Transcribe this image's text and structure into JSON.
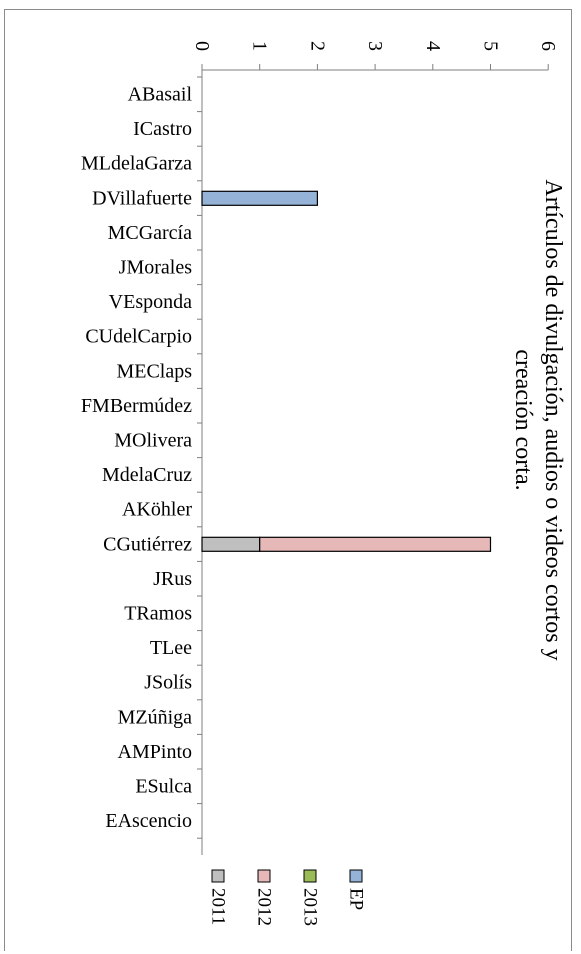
{
  "chart_data": {
    "type": "bar",
    "orientation": "horizontal",
    "stacked": true,
    "title": "Artículos de divulgación, audios o videos cortos y creación corta.",
    "title_lines": [
      "Artículos de divulgación, audios o videos cortos y",
      "creación corta."
    ],
    "categories": [
      "ABasail",
      "ICastro",
      "MLdelaGarza",
      "DVillafuerte",
      "MCGarcía",
      "JMorales",
      "VEsponda",
      "CUdelCarpio",
      "MEClaps",
      "FMBermúdez",
      "MOlivera",
      "MdelaCruz",
      "AKöhler",
      "CGutiérrez",
      "JRus",
      "TRamos",
      "TLee",
      "JSolís",
      "MZúñiga",
      "AMPinto",
      "ESulca",
      "EAscencio"
    ],
    "series": [
      {
        "name": "2011",
        "color": "#bfbfbf",
        "values": [
          0,
          0,
          0,
          0,
          0,
          0,
          0,
          0,
          0,
          0,
          0,
          0,
          0,
          1,
          0,
          0,
          0,
          0,
          0,
          0,
          0,
          0
        ]
      },
      {
        "name": "2012",
        "color": "#e6b9b8",
        "values": [
          0,
          0,
          0,
          0,
          0,
          0,
          0,
          0,
          0,
          0,
          0,
          0,
          0,
          4,
          0,
          0,
          0,
          0,
          0,
          0,
          0,
          0
        ]
      },
      {
        "name": "2013",
        "color": "#9bbb59",
        "values": [
          0,
          0,
          0,
          0,
          0,
          0,
          0,
          0,
          0,
          0,
          0,
          0,
          0,
          0,
          0,
          0,
          0,
          0,
          0,
          0,
          0,
          0
        ]
      },
      {
        "name": "EP",
        "color": "#95b3d7",
        "values": [
          0,
          0,
          0,
          2,
          0,
          0,
          0,
          0,
          0,
          0,
          0,
          0,
          0,
          0,
          0,
          0,
          0,
          0,
          0,
          0,
          0,
          0
        ]
      }
    ],
    "xlim": [
      0,
      6
    ],
    "ticks": [
      "0",
      "1",
      "2",
      "3",
      "4",
      "5",
      "6"
    ],
    "grid": false,
    "legend": "bottom"
  }
}
